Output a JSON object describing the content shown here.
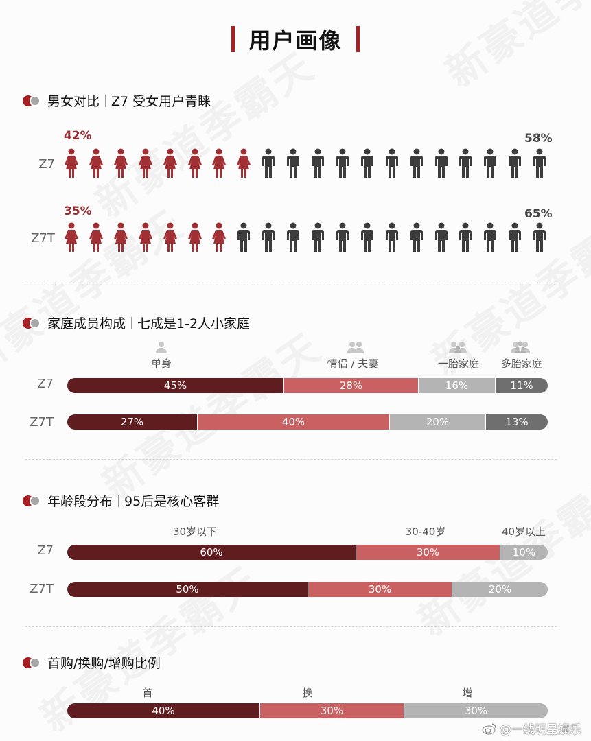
{
  "title": "用户画像",
  "watermark": "新豪道季霸天",
  "credit": "@一线明星娱乐",
  "colors": {
    "dark": "#5f1d20",
    "mid": "#c96062",
    "light": "#b4b4b4",
    "darkgray": "#6f6f6f",
    "female": "#a13035",
    "male": "#3c3c3c"
  },
  "sections": {
    "gender": {
      "title": "男女对比",
      "subtitle": "Z7 受女用户青睐"
    },
    "family": {
      "title": "家庭成员构成",
      "subtitle": "七成是1-2人小家庭"
    },
    "age": {
      "title": "年龄段分布",
      "subtitle": "95后是核心客群"
    },
    "purchase": {
      "title": "首购/换购/增购比例"
    }
  },
  "chart_data": [
    {
      "type": "bar",
      "title": "男女对比",
      "categories": [
        "Z7",
        "Z7T"
      ],
      "series": [
        {
          "name": "female",
          "values": [
            42,
            35
          ],
          "labels": [
            "42%",
            "35%"
          ]
        },
        {
          "name": "male",
          "values": [
            58,
            65
          ],
          "labels": [
            "58%",
            "65%"
          ]
        }
      ],
      "icons_per_row": 20,
      "female_icons": [
        8,
        7
      ]
    },
    {
      "type": "bar",
      "title": "家庭成员构成",
      "categories": [
        "Z7",
        "Z7T"
      ],
      "segments": [
        "单身",
        "情侣 / 夫妻",
        "一胎家庭",
        "多胎家庭"
      ],
      "series": [
        {
          "name": "单身",
          "values": [
            45,
            27
          ]
        },
        {
          "name": "情侣 / 夫妻",
          "values": [
            28,
            40
          ]
        },
        {
          "name": "一胎家庭",
          "values": [
            16,
            20
          ]
        },
        {
          "name": "多胎家庭",
          "values": [
            11,
            13
          ]
        }
      ]
    },
    {
      "type": "bar",
      "title": "年龄段分布",
      "categories": [
        "Z7",
        "Z7T"
      ],
      "segments": [
        "30岁以下",
        "30-40岁",
        "40岁以上"
      ],
      "series": [
        {
          "name": "30岁以下",
          "values": [
            60,
            50
          ]
        },
        {
          "name": "30-40岁",
          "values": [
            30,
            30
          ]
        },
        {
          "name": "40岁以上",
          "values": [
            10,
            20
          ]
        }
      ]
    },
    {
      "type": "bar",
      "title": "首购/换购/增购比例",
      "segments": [
        "首",
        "换",
        "增"
      ],
      "values": [
        40,
        30,
        30
      ]
    }
  ]
}
